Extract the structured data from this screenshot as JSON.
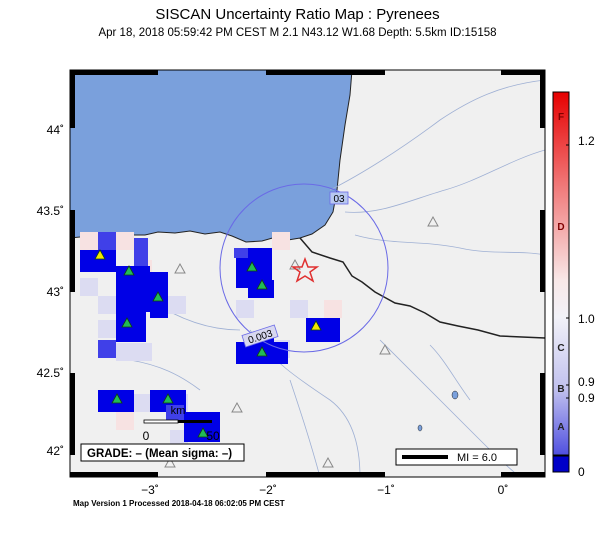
{
  "title": "SISCAN Uncertainty Ratio Map : Pyrenees",
  "subtitle": "Apr 18, 2018 05:59:42 PM CEST   M 2.1   N43.12 W1.68   Depth: 5.5km   ID:15158",
  "footer": "Map Version 1 Processed 2018-04-18 06:02:05 PM CEST",
  "map": {
    "lon_labels": [
      "−3˚",
      "−2˚",
      "−1˚",
      "0˚"
    ],
    "lat_labels": [
      "44˚",
      "43.5˚",
      "43˚",
      "42.5˚",
      "42˚"
    ],
    "contour_labels": [
      "03",
      "0.003"
    ],
    "scale_bar": {
      "unit": "km",
      "left": "0",
      "right": "50"
    },
    "grade_box": "GRADE: – (Mean sigma: –)",
    "mi_legend": "MI = 6.0",
    "epicenter": {
      "lat": 43.12,
      "lon": -1.68
    },
    "colors": {
      "sea": "#7aa0dc",
      "land": "#f0f0f0",
      "cell": "#0000e6",
      "station": "#22bb55",
      "station_alert": "#f2e600",
      "epicenter": "#e03030"
    }
  },
  "colorbar": {
    "grades": [
      "F",
      "D",
      "C",
      "B",
      "A"
    ],
    "values": [
      "1.2",
      "1.0",
      "0.9",
      "0.9",
      "0"
    ]
  }
}
